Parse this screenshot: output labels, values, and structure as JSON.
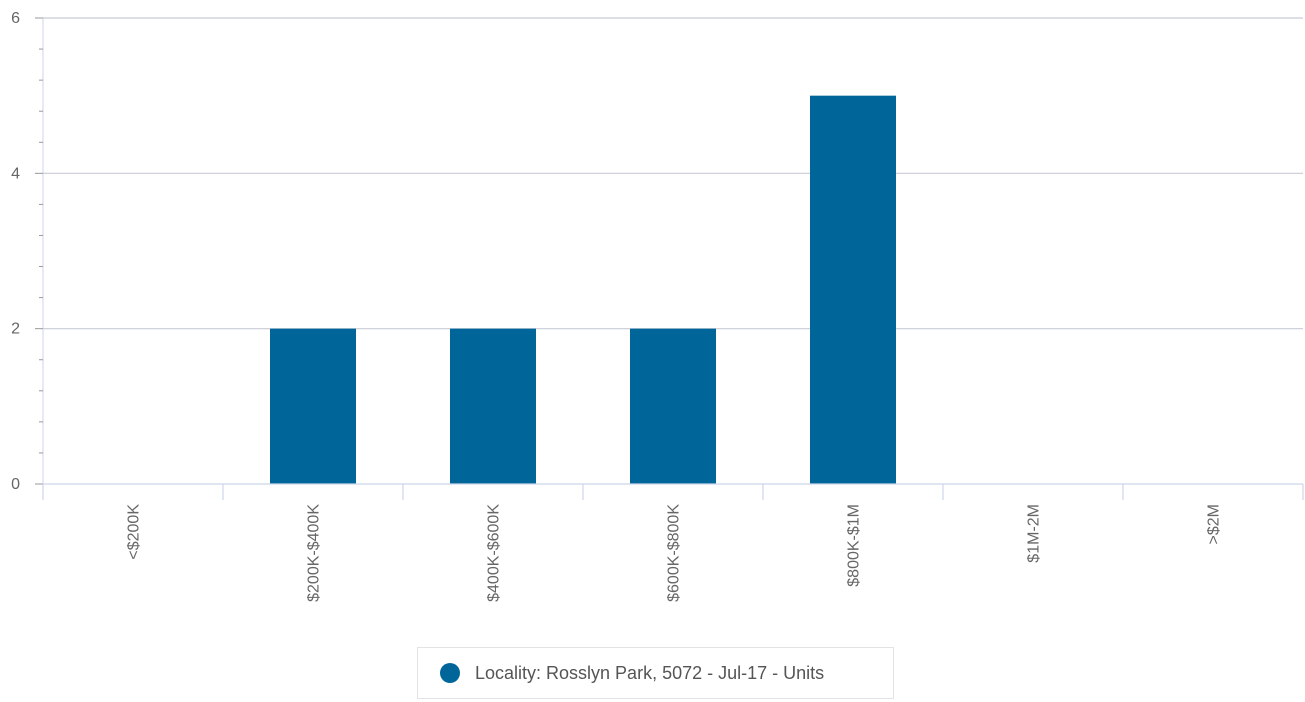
{
  "chart_data": {
    "type": "bar",
    "categories": [
      "<$200K",
      "$200K-$400K",
      "$400K-$600K",
      "$600K-$800K",
      "$800K-$1M",
      "$1M-2M",
      ">$2M"
    ],
    "series": [
      {
        "name": "Locality: Rosslyn Park, 5072 - Jul-17 - Units",
        "values": [
          0,
          2,
          2,
          2,
          5,
          0,
          0
        ]
      }
    ],
    "ylim": [
      0,
      6
    ],
    "yticks": [
      0,
      2,
      4,
      6
    ],
    "grid": true,
    "legend_position": "bottom-center",
    "colors": {
      "bar": "#006699",
      "grid": "#c8ccd4",
      "axis": "#ccd6eb"
    }
  }
}
